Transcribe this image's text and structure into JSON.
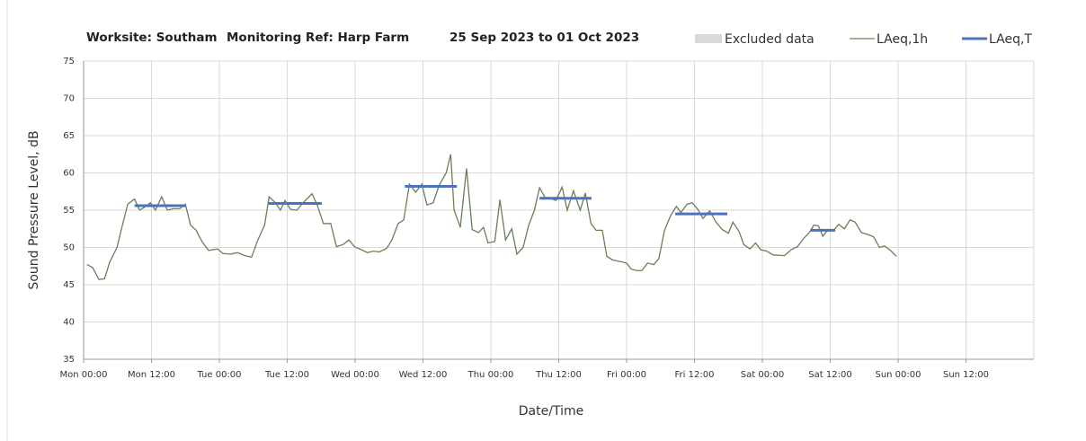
{
  "chart_data": {
    "type": "line",
    "title": [
      "Worksite: Southam",
      "Monitoring Ref: Harp Farm",
      "25 Sep 2023 to 01 Oct 2023"
    ],
    "x_label": "Date/Time",
    "y_label": "Sound Pressure Level, dB",
    "xlim": [
      0,
      168
    ],
    "xticks": [
      {
        "value": 0,
        "label": "Mon 00:00"
      },
      {
        "value": 12,
        "label": "Mon 12:00"
      },
      {
        "value": 24,
        "label": "Tue 00:00"
      },
      {
        "value": 36,
        "label": "Tue 12:00"
      },
      {
        "value": 48,
        "label": "Wed 00:00"
      },
      {
        "value": 60,
        "label": "Wed 12:00"
      },
      {
        "value": 72,
        "label": "Thu 00:00"
      },
      {
        "value": 84,
        "label": "Thu 12:00"
      },
      {
        "value": 96,
        "label": "Fri 00:00"
      },
      {
        "value": 108,
        "label": "Fri 12:00"
      },
      {
        "value": 120,
        "label": "Sat 00:00"
      },
      {
        "value": 132,
        "label": "Sat 12:00"
      },
      {
        "value": 144,
        "label": "Sun 00:00"
      },
      {
        "value": 156,
        "label": "Sun 12:00"
      }
    ],
    "ylim": [
      35,
      75
    ],
    "yticks": [
      35,
      40,
      45,
      50,
      55,
      60,
      65,
      70,
      75
    ],
    "grid": true,
    "excluded": {
      "name": "Excluded data",
      "color": "#d9d9d9"
    },
    "series": [
      {
        "name": "LAeq,1h",
        "color": "#6b7f56",
        "x": [
          0.6,
          1.6,
          2.7,
          3.7,
          4.6,
          5.9,
          6.8,
          7.8,
          9,
          9.9,
          11,
          11.8,
          12.7,
          13.8,
          14.8,
          15.9,
          17,
          18,
          18.9,
          19.9,
          21,
          22.1,
          23.7,
          24.6,
          25.9,
          27.2,
          28.5,
          29.7,
          30.8,
          32,
          32.8,
          33.9,
          34.8,
          35.6,
          36.6,
          37.7,
          38.8,
          40.4,
          41.3,
          42.4,
          43.7,
          44.7,
          45.9,
          46.9,
          47.9,
          49.1,
          50.2,
          51.2,
          52.3,
          53.6,
          54.5,
          55.6,
          56.6,
          57.6,
          58.7,
          59.8,
          60.7,
          61.8,
          62.9,
          64.1,
          64.9,
          65.5,
          66.6,
          67.7,
          68.7,
          69.8,
          70.7,
          71.5,
          72.7,
          73.6,
          74.6,
          75.7,
          76.6,
          77.7,
          78.7,
          79.7,
          80.6,
          81.6,
          82.5,
          83.5,
          84.6,
          85.5,
          86.6,
          87.8,
          88.7,
          89.7,
          90.6,
          91.7,
          92.5,
          93.6,
          94.9,
          96,
          96.8,
          97.8,
          98.7,
          99.7,
          100.8,
          101.7,
          102.7,
          103.8,
          104.8,
          105.6,
          106.7,
          107.6,
          108.6,
          109.5,
          110.7,
          111.8,
          112.9,
          114,
          114.8,
          115.9,
          116.7,
          117.8,
          118.8,
          119.7,
          120.8,
          121.9,
          123.9,
          125.1,
          126.2,
          127.3,
          128.3,
          129.1,
          129.9,
          130.7,
          131.6,
          132.6,
          133.5,
          134.5,
          135.5,
          136.4,
          137.5,
          138.8,
          139.7,
          140.7,
          141.6,
          142.8,
          143.7
        ],
        "values": [
          47.7,
          47.3,
          45.7,
          45.8,
          48,
          50,
          52.8,
          55.8,
          56.5,
          55,
          55.5,
          56,
          55,
          56.8,
          55,
          55.2,
          55.2,
          55.8,
          53,
          52.3,
          50.7,
          49.6,
          49.8,
          49.2,
          49.1,
          49.3,
          48.9,
          48.7,
          51,
          53,
          56.8,
          56,
          55,
          56.3,
          55.1,
          55,
          56,
          57.2,
          55.7,
          53.2,
          53.2,
          50.1,
          50.4,
          51,
          50.1,
          49.7,
          49.3,
          49.5,
          49.4,
          49.9,
          51,
          53.2,
          53.7,
          58.5,
          57.4,
          58.5,
          55.7,
          56,
          58.4,
          60,
          62.5,
          55,
          52.7,
          60.6,
          52.4,
          52,
          52.7,
          50.6,
          50.8,
          56.4,
          51,
          52.5,
          49.1,
          50,
          53,
          55,
          58,
          56.7,
          56.6,
          56.3,
          58.1,
          55,
          57.6,
          55,
          57.3,
          53.2,
          52.3,
          52.3,
          48.8,
          48.3,
          48.1,
          47.9,
          47.1,
          46.9,
          46.9,
          47.9,
          47.7,
          48.5,
          52.3,
          54.3,
          55.5,
          54.7,
          55.8,
          56,
          55.1,
          53.9,
          54.9,
          53.4,
          52.4,
          51.9,
          53.4,
          52.1,
          50.4,
          49.8,
          50.6,
          49.7,
          49.5,
          49,
          48.9,
          49.7,
          50.1,
          51.2,
          52,
          53,
          52.9,
          51.5,
          52.4,
          52.3,
          53.1,
          52.5,
          53.7,
          53.4,
          52,
          51.7,
          51.4,
          50,
          50.2,
          49.5,
          48.8
        ]
      },
      {
        "name": "LAeq,T",
        "color": "#4a72c0",
        "segments": [
          {
            "start": 9,
            "end": 18,
            "value": 55.6
          },
          {
            "start": 32.6,
            "end": 42.1,
            "value": 55.9
          },
          {
            "start": 56.8,
            "end": 66,
            "value": 58.2
          },
          {
            "start": 80.6,
            "end": 89.8,
            "value": 56.6
          },
          {
            "start": 104.6,
            "end": 113.8,
            "value": 54.5
          },
          {
            "start": 128.5,
            "end": 132.9,
            "value": 52.3
          }
        ]
      }
    ]
  }
}
